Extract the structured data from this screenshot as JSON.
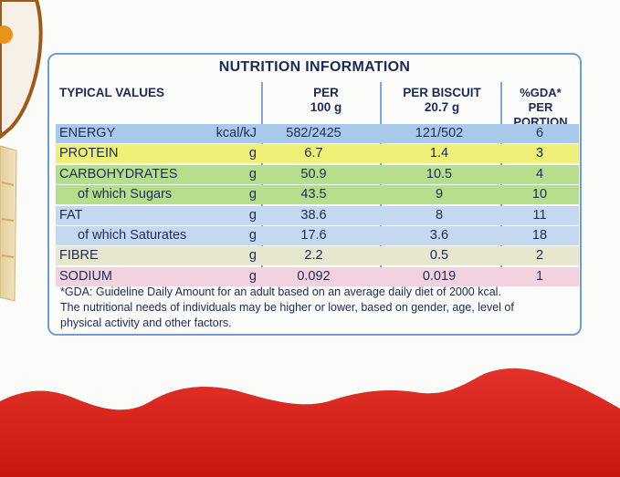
{
  "panel": {
    "title": "NUTRITION INFORMATION",
    "headers": {
      "typical": "TYPICAL VALUES",
      "per100_line1": "PER",
      "per100_line2": "100 g",
      "perbiscuit_line1": "PER BISCUIT",
      "perbiscuit_line2": "20.7 g",
      "gda_line1": "%GDA*",
      "gda_line2": "PER PORTION"
    },
    "rows": [
      {
        "name": "ENERGY",
        "unit": "kcal/kJ",
        "per100": "582/2425",
        "perbiscuit": "121/502",
        "gda": "6",
        "color": "#a9c9ea",
        "sub": false
      },
      {
        "name": "PROTEIN",
        "unit": "g",
        "per100": "6.7",
        "perbiscuit": "1.4",
        "gda": "3",
        "color": "#eef078",
        "sub": false
      },
      {
        "name": "CARBOHYDRATES",
        "unit": "g",
        "per100": "50.9",
        "perbiscuit": "10.5",
        "gda": "4",
        "color": "#b6de8c",
        "sub": false
      },
      {
        "name": "of which Sugars",
        "unit": "g",
        "per100": "43.5",
        "perbiscuit": "9",
        "gda": "10",
        "color": "#b6de8c",
        "sub": true
      },
      {
        "name": "FAT",
        "unit": "g",
        "per100": "38.6",
        "perbiscuit": "8",
        "gda": "11",
        "color": "#c4d8ef",
        "sub": false
      },
      {
        "name": "of which Saturates",
        "unit": "g",
        "per100": "17.6",
        "perbiscuit": "3.6",
        "gda": "18",
        "color": "#c4d8ef",
        "sub": true
      },
      {
        "name": "FIBRE",
        "unit": "g",
        "per100": "2.2",
        "perbiscuit": "0.5",
        "gda": "2",
        "color": "#e7e7cf",
        "sub": false
      },
      {
        "name": "SODIUM",
        "unit": "g",
        "per100": "0.092",
        "perbiscuit": "0.019",
        "gda": "1",
        "color": "#f3d2df",
        "sub": false
      }
    ],
    "footnote_line1": "*GDA: Guideline Daily Amount for an adult based on an average daily diet of 2000 kcal.",
    "footnote_line2": "The nutritional needs of individuals may be higher or lower, based on gender, age, level of",
    "footnote_line3": "physical activity and other factors."
  },
  "colors": {
    "text": "#1d2a55",
    "border": "#6f9fd0",
    "red_band": "#d8221c",
    "background": "#fbfbfa"
  }
}
